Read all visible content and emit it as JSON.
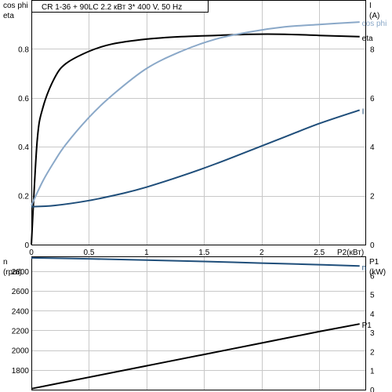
{
  "chart_data": [
    {
      "type": "line",
      "title": "CR 1-36 + 90LC    2.2 кВт   3* 400 V, 50 Hz",
      "xlabel": "P2(кВт)",
      "xlim": [
        0,
        2.9
      ],
      "x_ticks": [
        "0",
        "0.5",
        "1",
        "1.5",
        "2",
        "2.5"
      ],
      "left_axis": {
        "label_lines": [
          "cos phi",
          "eta"
        ],
        "ylim": [
          0,
          1
        ],
        "ticks": [
          "0",
          "0.2",
          "0.4",
          "0.6",
          "0.8"
        ]
      },
      "right_axis": {
        "label_lines": [
          "I",
          "(A)"
        ],
        "ylim": [
          0,
          10
        ],
        "ticks": [
          "0",
          "2",
          "4",
          "6",
          "8"
        ]
      },
      "grid": true,
      "series": [
        {
          "name": "eta",
          "axis": "left",
          "color": "#000000",
          "x": [
            0,
            0.05,
            0.1,
            0.2,
            0.3,
            0.5,
            0.7,
            1.0,
            1.3,
            1.6,
            1.9,
            2.2,
            2.5,
            2.85
          ],
          "y": [
            0,
            0.42,
            0.56,
            0.68,
            0.74,
            0.79,
            0.82,
            0.84,
            0.85,
            0.855,
            0.86,
            0.86,
            0.855,
            0.85
          ]
        },
        {
          "name": "cos phi",
          "axis": "left",
          "color": "#8aa8c8",
          "x": [
            0,
            0.1,
            0.2,
            0.3,
            0.5,
            0.7,
            1.0,
            1.3,
            1.6,
            1.9,
            2.2,
            2.5,
            2.85
          ],
          "y": [
            0.16,
            0.26,
            0.34,
            0.41,
            0.52,
            0.61,
            0.72,
            0.79,
            0.84,
            0.87,
            0.89,
            0.9,
            0.91
          ]
        },
        {
          "name": "I",
          "axis": "right",
          "color": "#1f4e7a",
          "x": [
            0,
            0.2,
            0.5,
            0.8,
            1.0,
            1.3,
            1.6,
            1.9,
            2.2,
            2.5,
            2.85
          ],
          "y": [
            1.55,
            1.6,
            1.8,
            2.1,
            2.35,
            2.8,
            3.3,
            3.85,
            4.4,
            4.95,
            5.5
          ]
        }
      ]
    },
    {
      "type": "line",
      "xlim": [
        0,
        2.9
      ],
      "left_axis": {
        "label_lines": [
          "n",
          "(rpm)"
        ],
        "ylim": [
          1600,
          2950
        ],
        "ticks": [
          "1800",
          "2000",
          "2200",
          "2400",
          "2600",
          "2800"
        ]
      },
      "right_axis": {
        "label_lines": [
          "P1",
          "(kW)"
        ],
        "ylim": [
          0,
          7
        ],
        "ticks": [
          "0",
          "1",
          "2",
          "3",
          "4",
          "5",
          "6"
        ]
      },
      "grid": true,
      "series": [
        {
          "name": "n",
          "axis": "left",
          "color": "#1f4e7a",
          "x": [
            0,
            0.5,
            1.0,
            1.5,
            2.0,
            2.5,
            2.85
          ],
          "y": [
            2935,
            2925,
            2912,
            2898,
            2882,
            2866,
            2852
          ]
        },
        {
          "name": "P1",
          "axis": "right",
          "color": "#000000",
          "x": [
            0,
            0.5,
            1.0,
            1.5,
            2.0,
            2.5,
            2.85
          ],
          "y": [
            0.05,
            0.65,
            1.25,
            1.85,
            2.45,
            3.05,
            3.45
          ]
        }
      ]
    }
  ]
}
